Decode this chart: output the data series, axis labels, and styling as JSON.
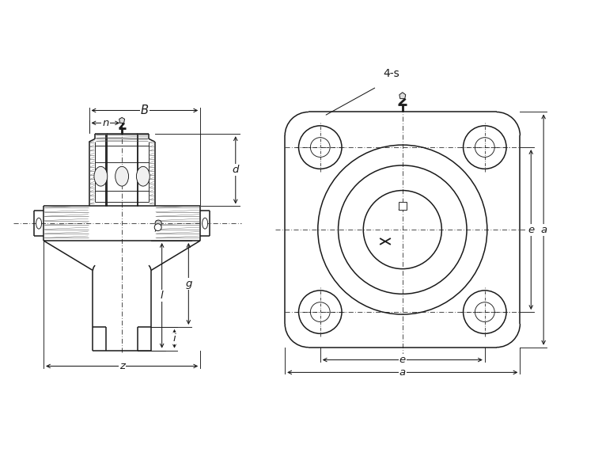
{
  "bg_color": "#ffffff",
  "line_color": "#1a1a1a",
  "dim_color": "#1a1a1a",
  "fig_width": 7.61,
  "fig_height": 6.0,
  "labels": {
    "B": "B",
    "n": "n",
    "d": "d",
    "g": "g",
    "i": "i",
    "l": "l",
    "z": "z",
    "e": "e",
    "a": "a",
    "four_s": "4-s"
  }
}
